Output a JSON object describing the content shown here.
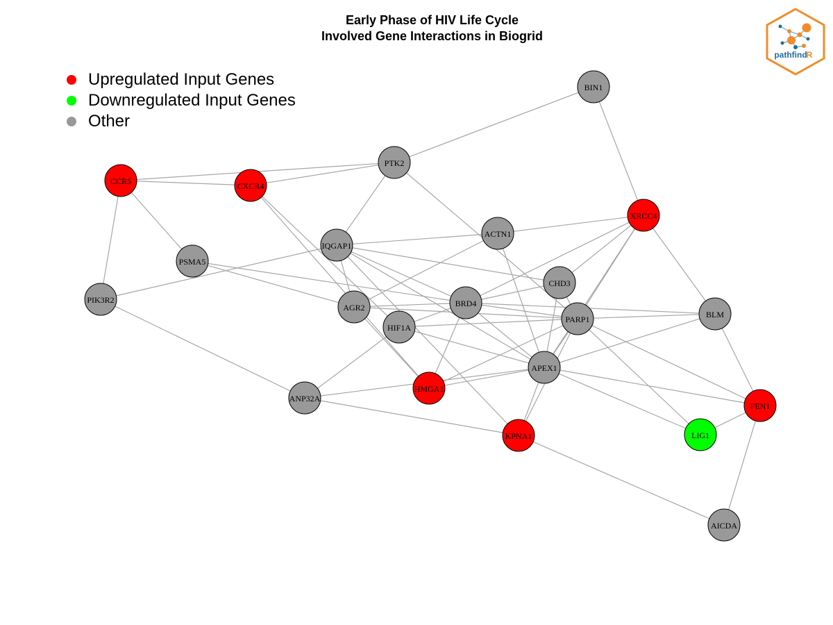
{
  "title": {
    "line1": "Early Phase of HIV Life Cycle",
    "line2": "Involved Gene Interactions in Biogrid"
  },
  "legend": [
    {
      "label": "Upregulated Input Genes",
      "color": "#ff0000"
    },
    {
      "label": "Downregulated Input Genes",
      "color": "#00ff00"
    },
    {
      "label": "Other",
      "color": "#999999"
    }
  ],
  "logo": {
    "text_main": "pathfind",
    "text_accent": "R",
    "border_color": "#f28c28",
    "text_color": "#1f6e9c"
  },
  "colors": {
    "up": "#ff0000",
    "down": "#00ff00",
    "other": "#999999",
    "edge": "#a6a6a6"
  },
  "network": {
    "nodes": [
      {
        "id": "BIN1",
        "label": "BIN1",
        "status": "other"
      },
      {
        "id": "PTK2",
        "label": "PTK2",
        "status": "other"
      },
      {
        "id": "CCR5",
        "label": "CCR5",
        "status": "up"
      },
      {
        "id": "CXCR4",
        "label": "CXCR4",
        "status": "up"
      },
      {
        "id": "XRCC4",
        "label": "XRCC4",
        "status": "up"
      },
      {
        "id": "ACTN1",
        "label": "ACTN1",
        "status": "other"
      },
      {
        "id": "IQGAP1",
        "label": "IQGAP1",
        "status": "other"
      },
      {
        "id": "PSMA5",
        "label": "PSMA5",
        "status": "other"
      },
      {
        "id": "PIK3R2",
        "label": "PIK3R2",
        "status": "other"
      },
      {
        "id": "CHD3",
        "label": "CHD3",
        "status": "other"
      },
      {
        "id": "AGR2",
        "label": "AGR2",
        "status": "other"
      },
      {
        "id": "BRD4",
        "label": "BRD4",
        "status": "other"
      },
      {
        "id": "HIF1A",
        "label": "HIF1A",
        "status": "other"
      },
      {
        "id": "PARP1",
        "label": "PARP1",
        "status": "other"
      },
      {
        "id": "BLM",
        "label": "BLM",
        "status": "other"
      },
      {
        "id": "APEX1",
        "label": "APEX1",
        "status": "other"
      },
      {
        "id": "HMGA1",
        "label": "HMGA1",
        "status": "up"
      },
      {
        "id": "ANP32A",
        "label": "ANP32A",
        "status": "other"
      },
      {
        "id": "FEN1",
        "label": "FEN1",
        "status": "up"
      },
      {
        "id": "KPNA1",
        "label": "KPNA1",
        "status": "up"
      },
      {
        "id": "LIG1",
        "label": "LIG1",
        "status": "down"
      },
      {
        "id": "AICDA",
        "label": "AICDA",
        "status": "other"
      }
    ],
    "edges": [
      [
        "BIN1",
        "PTK2"
      ],
      [
        "BIN1",
        "XRCC4"
      ],
      [
        "CCR5",
        "CXCR4"
      ],
      [
        "CCR5",
        "PTK2"
      ],
      [
        "CCR5",
        "PSMA5"
      ],
      [
        "CCR5",
        "PIK3R2"
      ],
      [
        "CXCR4",
        "PTK2"
      ],
      [
        "CXCR4",
        "HIF1A"
      ],
      [
        "CXCR4",
        "HMGA1"
      ],
      [
        "PTK2",
        "IQGAP1"
      ],
      [
        "PTK2",
        "PARP1"
      ],
      [
        "IQGAP1",
        "ACTN1"
      ],
      [
        "IQGAP1",
        "CHD3"
      ],
      [
        "IQGAP1",
        "BRD4"
      ],
      [
        "IQGAP1",
        "AGR2"
      ],
      [
        "IQGAP1",
        "APEX1"
      ],
      [
        "IQGAP1",
        "KPNA1"
      ],
      [
        "IQGAP1",
        "PIK3R2"
      ],
      [
        "ACTN1",
        "XRCC4"
      ],
      [
        "ACTN1",
        "AGR2"
      ],
      [
        "ACTN1",
        "APEX1"
      ],
      [
        "XRCC4",
        "CHD3"
      ],
      [
        "XRCC4",
        "BRD4"
      ],
      [
        "XRCC4",
        "PARP1"
      ],
      [
        "XRCC4",
        "BLM"
      ],
      [
        "XRCC4",
        "APEX1"
      ],
      [
        "PSMA5",
        "AGR2"
      ],
      [
        "PSMA5",
        "BRD4"
      ],
      [
        "PIK3R2",
        "ANP32A"
      ],
      [
        "CHD3",
        "BRD4"
      ],
      [
        "CHD3",
        "PARP1"
      ],
      [
        "CHD3",
        "APEX1"
      ],
      [
        "AGR2",
        "BRD4"
      ],
      [
        "AGR2",
        "PARP1"
      ],
      [
        "AGR2",
        "HMGA1"
      ],
      [
        "BRD4",
        "BLM"
      ],
      [
        "BRD4",
        "HIF1A"
      ],
      [
        "BRD4",
        "PARP1"
      ],
      [
        "BRD4",
        "APEX1"
      ],
      [
        "BRD4",
        "HMGA1"
      ],
      [
        "HIF1A",
        "PARP1"
      ],
      [
        "HIF1A",
        "APEX1"
      ],
      [
        "HIF1A",
        "ANP32A"
      ],
      [
        "PARP1",
        "BLM"
      ],
      [
        "PARP1",
        "APEX1"
      ],
      [
        "PARP1",
        "HMGA1"
      ],
      [
        "PARP1",
        "FEN1"
      ],
      [
        "PARP1",
        "LIG1"
      ],
      [
        "PARP1",
        "KPNA1"
      ],
      [
        "BLM",
        "FEN1"
      ],
      [
        "BLM",
        "APEX1"
      ],
      [
        "APEX1",
        "HMGA1"
      ],
      [
        "APEX1",
        "ANP32A"
      ],
      [
        "APEX1",
        "FEN1"
      ],
      [
        "APEX1",
        "LIG1"
      ],
      [
        "APEX1",
        "KPNA1"
      ],
      [
        "ANP32A",
        "KPNA1"
      ],
      [
        "FEN1",
        "LIG1"
      ],
      [
        "FEN1",
        "AICDA"
      ],
      [
        "KPNA1",
        "AICDA"
      ]
    ]
  }
}
